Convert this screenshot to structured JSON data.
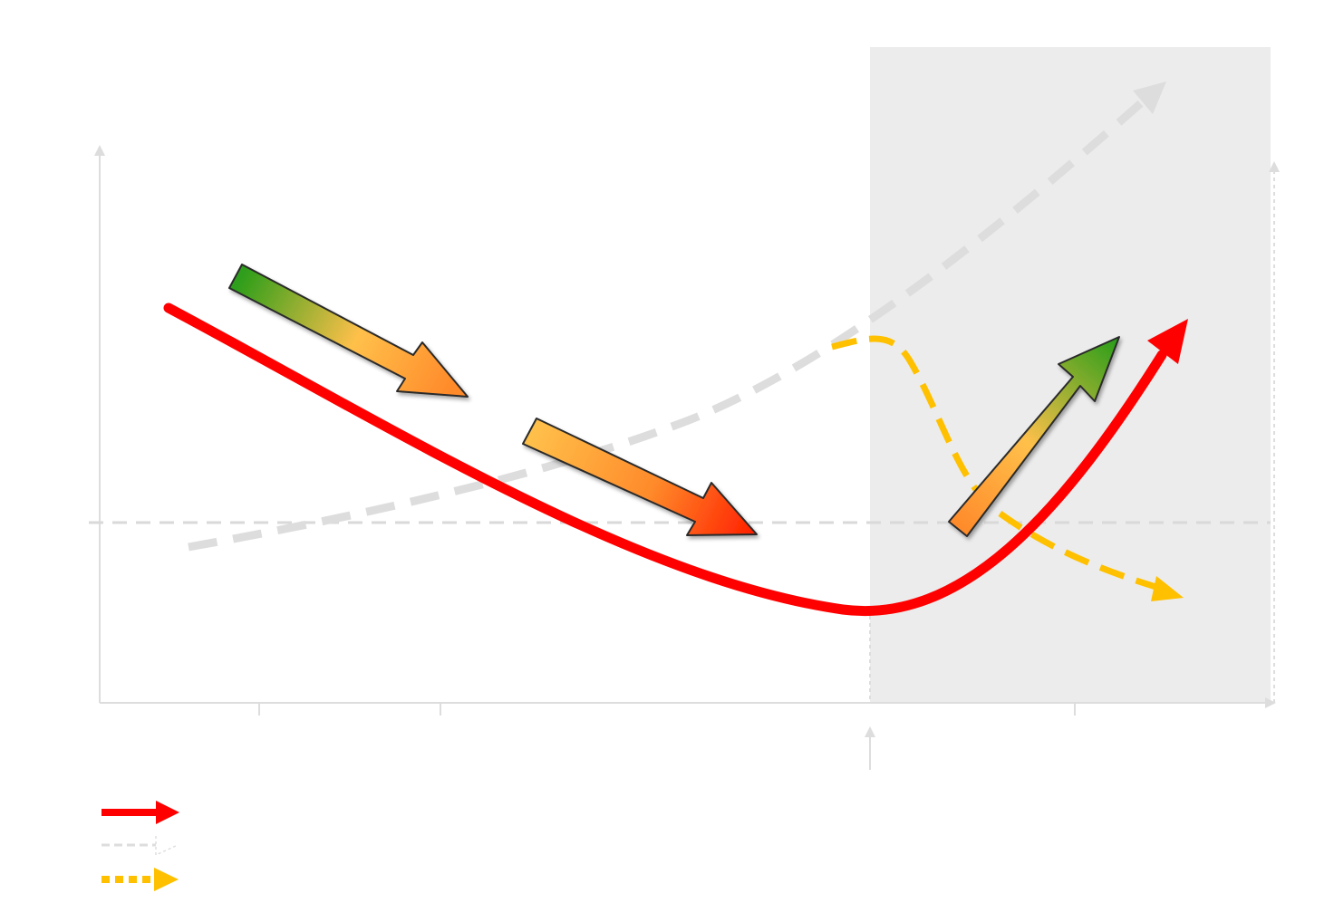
{
  "colors": {
    "main_curve": "#ff0000",
    "gray_dashed": "#dddddd",
    "yellow_dashed": "#ffc000",
    "shaded_region": "#ececec",
    "axis": "#dddddd",
    "green": "#2e9e1a",
    "orange": "#ff9933",
    "red_arrow": "#ff2200"
  },
  "legend": {
    "items": [
      {
        "style": "solid",
        "color": "#ff0000",
        "label": ""
      },
      {
        "style": "dashed",
        "color": "#dddddd",
        "label": ""
      },
      {
        "style": "dotted",
        "color": "#ffc000",
        "label": ""
      }
    ]
  },
  "icons": {
    "trend_arrow_1": "down-right-arrow-icon",
    "trend_arrow_2": "down-right-arrow-icon",
    "trend_arrow_3": "up-right-arrow-icon"
  }
}
